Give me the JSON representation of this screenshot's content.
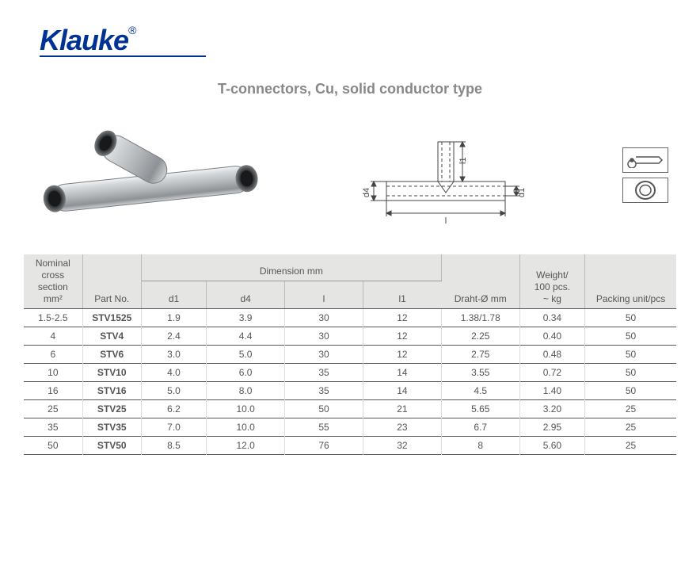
{
  "brand": "Klauke",
  "brand_color": "#003296",
  "title": "T-connectors, Cu, solid conductor type",
  "table": {
    "headers": {
      "nominal": "Nominal cross\nsection mm²",
      "partno": "Part No.",
      "dim_group": "Dimension mm",
      "d1": "d1",
      "d4": "d4",
      "l": "l",
      "l1": "l1",
      "draht": "Draht-Ø mm",
      "weight": "Weight/\n100 pcs.\n~ kg",
      "packing": "Packing unit/pcs"
    },
    "rows": [
      {
        "ncs": "1.5-2.5",
        "part": "STV1525",
        "d1": "1.9",
        "d4": "3.9",
        "l": "30",
        "l1": "12",
        "draht": "1.38/1.78",
        "weight": "0.34",
        "pack": "50"
      },
      {
        "ncs": "4",
        "part": "STV4",
        "d1": "2.4",
        "d4": "4.4",
        "l": "30",
        "l1": "12",
        "draht": "2.25",
        "weight": "0.40",
        "pack": "50"
      },
      {
        "ncs": "6",
        "part": "STV6",
        "d1": "3.0",
        "d4": "5.0",
        "l": "30",
        "l1": "12",
        "draht": "2.75",
        "weight": "0.48",
        "pack": "50"
      },
      {
        "ncs": "10",
        "part": "STV10",
        "d1": "4.0",
        "d4": "6.0",
        "l": "35",
        "l1": "14",
        "draht": "3.55",
        "weight": "0.72",
        "pack": "50"
      },
      {
        "ncs": "16",
        "part": "STV16",
        "d1": "5.0",
        "d4": "8.0",
        "l": "35",
        "l1": "14",
        "draht": "4.5",
        "weight": "1.40",
        "pack": "50"
      },
      {
        "ncs": "25",
        "part": "STV25",
        "d1": "6.2",
        "d4": "10.0",
        "l": "50",
        "l1": "21",
        "draht": "5.65",
        "weight": "3.20",
        "pack": "25"
      },
      {
        "ncs": "35",
        "part": "STV35",
        "d1": "7.0",
        "d4": "10.0",
        "l": "55",
        "l1": "23",
        "draht": "6.7",
        "weight": "2.95",
        "pack": "25"
      },
      {
        "ncs": "50",
        "part": "STV50",
        "d1": "8.5",
        "d4": "12.0",
        "l": "76",
        "l1": "32",
        "draht": "8",
        "weight": "5.60",
        "pack": "25"
      }
    ]
  },
  "diagram": {
    "labels": {
      "d1": "d1",
      "d4": "d4",
      "l": "l",
      "l1": "l1"
    },
    "stroke": "#444444",
    "font_size": 11
  },
  "product_render": {
    "body_fill": "#c9cbcd",
    "body_stroke": "#7a7d80",
    "highlight": "#eef0f2",
    "shadow": "#6b6e71",
    "hole": "#2a2c2e"
  },
  "icon_stroke": "#555555"
}
